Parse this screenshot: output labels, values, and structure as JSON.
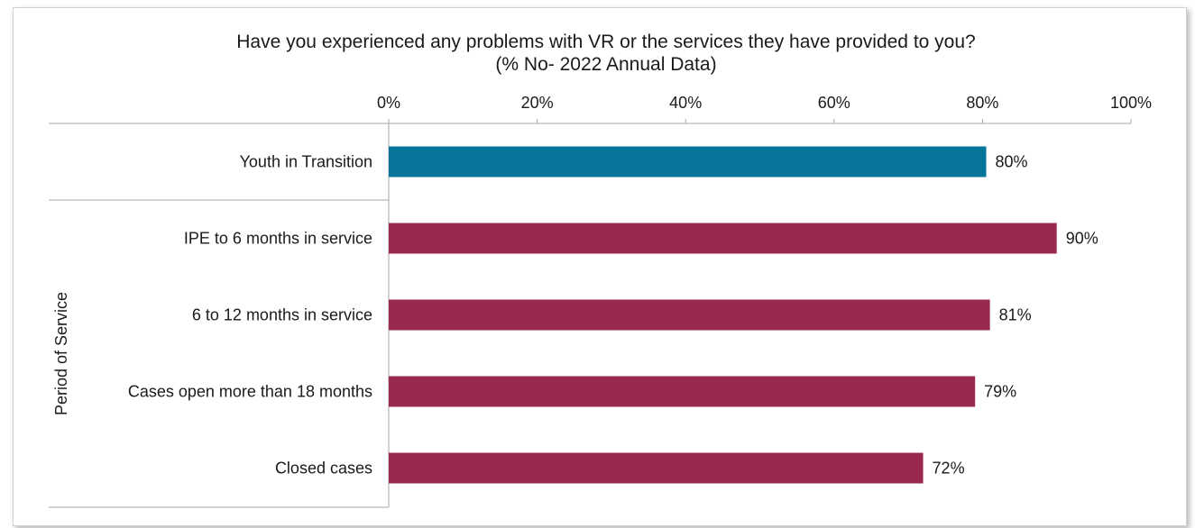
{
  "chart_data": {
    "type": "bar",
    "orientation": "horizontal",
    "title": "Have you experienced any problems with VR or the services they have provided to you?",
    "subtitle": "(% No- 2022 Annual Data)",
    "xlim": [
      0,
      100
    ],
    "x_ticks": [
      "0%",
      "20%",
      "40%",
      "60%",
      "80%",
      "100%"
    ],
    "x_axis_position": "top",
    "grid": false,
    "group_label": "Period of Service",
    "categories": [
      "Youth in Transition",
      "IPE to 6 months in service",
      "6 to 12 months in service",
      "Cases open more than 18 months",
      "Closed cases"
    ],
    "values": [
      80.5,
      90,
      81,
      79,
      72
    ],
    "data_labels": [
      "80%",
      "90%",
      "81%",
      "79%",
      "72%"
    ],
    "colors": [
      "#07749b",
      "#9a2950",
      "#9a2950",
      "#9a2950",
      "#9a2950"
    ]
  }
}
